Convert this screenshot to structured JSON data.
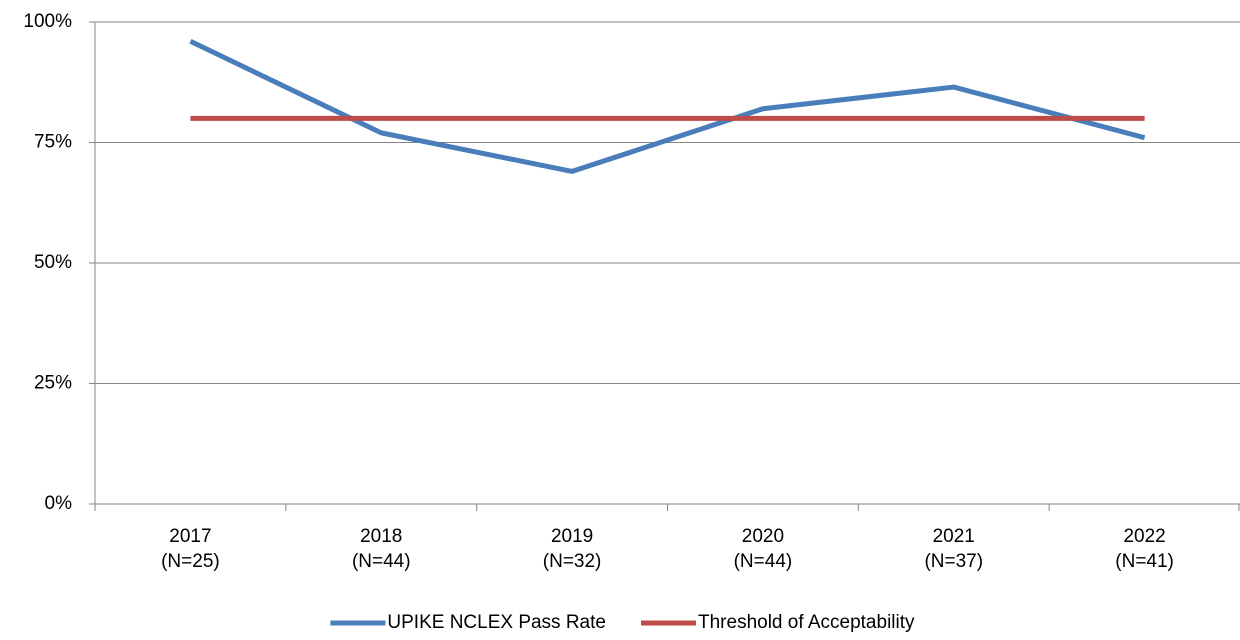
{
  "chart_data": {
    "type": "line",
    "categories": [
      "2017\n(N=25)",
      "2018\n(N=44)",
      "2019\n(N=32)",
      "2020\n(N=44)",
      "2021\n(N=37)",
      "2022\n(N=41)"
    ],
    "series": [
      {
        "name": "UPIKE NCLEX Pass Rate",
        "color": "#4a7ebb",
        "values": [
          96,
          77,
          69,
          82,
          86.5,
          76
        ]
      },
      {
        "name": "Threshold of Acceptability",
        "color": "#be4b48",
        "values": [
          80,
          80,
          80,
          80,
          80,
          80
        ]
      }
    ],
    "ylim": [
      0,
      100
    ],
    "yticks": [
      {
        "value": 0,
        "label": "0%"
      },
      {
        "value": 25,
        "label": "25%"
      },
      {
        "value": 50,
        "label": "50%"
      },
      {
        "value": 75,
        "label": "75%"
      },
      {
        "value": 100,
        "label": "100%"
      }
    ],
    "grid": true,
    "legend": "bottom"
  }
}
